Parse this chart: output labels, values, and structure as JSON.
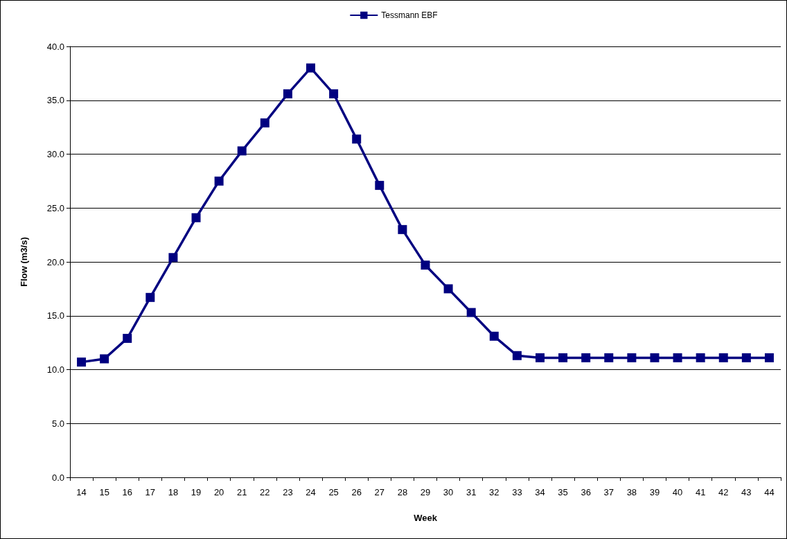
{
  "chart_data": {
    "type": "line",
    "xlabel": "Week",
    "ylabel": "Flow (m3/s)",
    "categories": [
      "14",
      "15",
      "16",
      "17",
      "18",
      "19",
      "20",
      "21",
      "22",
      "23",
      "24",
      "25",
      "26",
      "27",
      "28",
      "29",
      "30",
      "31",
      "32",
      "33",
      "34",
      "35",
      "36",
      "37",
      "38",
      "39",
      "40",
      "41",
      "42",
      "43",
      "44"
    ],
    "series": [
      {
        "name": "Tessmann EBF",
        "color": "#000080",
        "values": [
          10.7,
          11.0,
          12.9,
          16.7,
          20.4,
          24.1,
          27.5,
          30.3,
          32.9,
          35.6,
          38.0,
          35.6,
          31.4,
          27.1,
          23.0,
          19.7,
          17.5,
          15.3,
          13.1,
          11.3,
          11.1,
          11.1,
          11.1,
          11.1,
          11.1,
          11.1,
          11.1,
          11.1,
          11.1,
          11.1,
          11.1
        ]
      }
    ],
    "ylim": [
      0,
      40
    ],
    "yticks": [
      {
        "value": 0,
        "label": "0.0"
      },
      {
        "value": 5,
        "label": "5.0"
      },
      {
        "value": 10,
        "label": "10.0"
      },
      {
        "value": 15,
        "label": "15.0"
      },
      {
        "value": 20,
        "label": "20.0"
      },
      {
        "value": 25,
        "label": "25.0"
      },
      {
        "value": 30,
        "label": "30.0"
      },
      {
        "value": 35,
        "label": "35.0"
      },
      {
        "value": 40,
        "label": "40.0"
      }
    ],
    "grid": "y",
    "legend": "top",
    "marker": "square",
    "line_style": "solid"
  }
}
